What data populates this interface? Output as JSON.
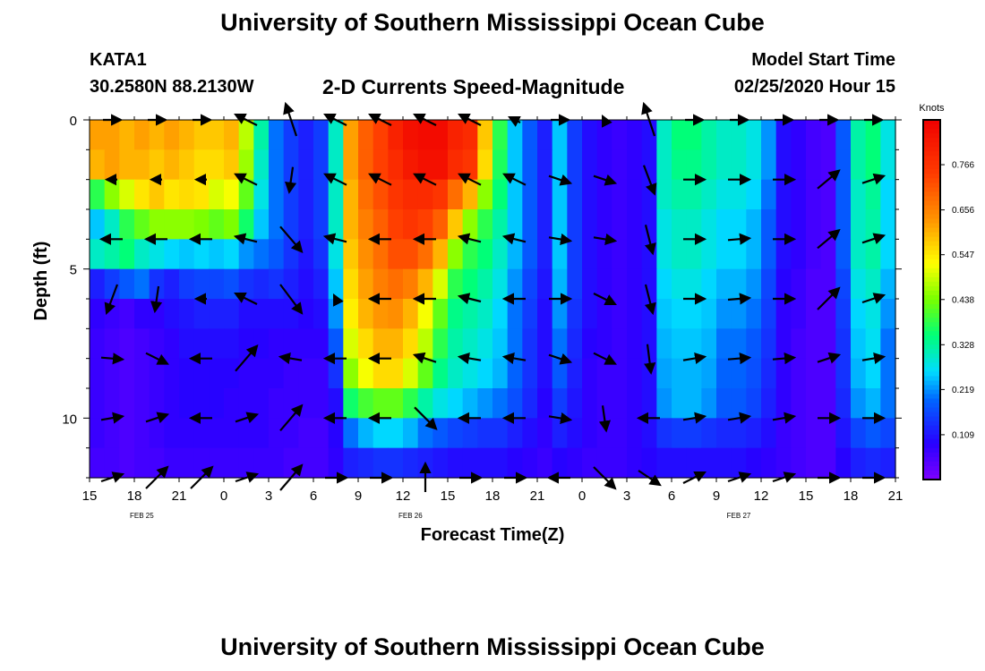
{
  "header": {
    "title": "University of Southern Mississippi Ocean Cube",
    "station": "KATA1",
    "coordinates": "30.2580N 88.2130W",
    "subtitle": "2-D Currents Speed-Magnitude",
    "model_start_label": "Model Start Time",
    "model_start_value": "02/25/2020 Hour 15"
  },
  "footer": {
    "title": "University of Southern Mississippi Ocean Cube"
  },
  "chart_data": {
    "type": "heatmap",
    "title": "2-D Currents Speed-Magnitude",
    "xlabel": "Forecast Time(Z)",
    "ylabel": "Depth (ft)",
    "x_ticks": [
      "15",
      "18",
      "21",
      "0",
      "3",
      "6",
      "9",
      "12",
      "15",
      "18",
      "21",
      "0",
      "3",
      "6",
      "9",
      "12",
      "15",
      "18",
      "21"
    ],
    "date_labels": [
      {
        "label": "FEB 25",
        "hour_offset": 3.5
      },
      {
        "label": "FEB 26",
        "hour_offset": 21.5
      },
      {
        "label": "FEB 27",
        "hour_offset": 43.5
      }
    ],
    "xlim_hours": [
      0,
      54
    ],
    "y_ticks": [
      0,
      5,
      10
    ],
    "ylim_ft": [
      0,
      12
    ],
    "colorbar": {
      "unit": "Knots",
      "ticks": [
        0.766,
        0.656,
        0.547,
        0.438,
        0.328,
        0.219,
        0.109
      ],
      "range": [
        0,
        0.875
      ]
    },
    "hours": [
      0,
      1,
      2,
      3,
      4,
      5,
      6,
      7,
      8,
      9,
      10,
      11,
      12,
      13,
      14,
      15,
      16,
      17,
      18,
      19,
      20,
      21,
      22,
      23,
      24,
      25,
      26,
      27,
      28,
      29,
      30,
      31,
      32,
      33,
      34,
      35,
      36,
      37,
      38,
      39,
      40,
      41,
      42,
      43,
      44,
      45,
      46,
      47,
      48,
      49,
      50,
      51,
      52,
      53
    ],
    "depths_ft": [
      0.5,
      1.5,
      2.5,
      3.5,
      4.5,
      5.5,
      6.5,
      7.5,
      8.5,
      9.5,
      10.5,
      11.5
    ],
    "speed_knots": [
      [
        0.62,
        0.62,
        0.6,
        0.62,
        0.6,
        0.62,
        0.6,
        0.58,
        0.58,
        0.6,
        0.48,
        0.32,
        0.2,
        0.15,
        0.12,
        0.15,
        0.3,
        0.62,
        0.7,
        0.74,
        0.8,
        0.84,
        0.85,
        0.85,
        0.8,
        0.78,
        0.58,
        0.38,
        0.25,
        0.18,
        0.12,
        0.25,
        0.15,
        0.1,
        0.08,
        0.07,
        0.08,
        0.1,
        0.3,
        0.35,
        0.35,
        0.32,
        0.3,
        0.3,
        0.28,
        0.22,
        0.1,
        0.08,
        0.06,
        0.05,
        0.18,
        0.32,
        0.35,
        0.28
      ],
      [
        0.6,
        0.62,
        0.6,
        0.6,
        0.58,
        0.6,
        0.58,
        0.56,
        0.56,
        0.58,
        0.46,
        0.3,
        0.2,
        0.15,
        0.12,
        0.15,
        0.3,
        0.62,
        0.7,
        0.74,
        0.78,
        0.82,
        0.84,
        0.84,
        0.78,
        0.76,
        0.56,
        0.37,
        0.25,
        0.18,
        0.12,
        0.25,
        0.15,
        0.1,
        0.08,
        0.07,
        0.08,
        0.1,
        0.3,
        0.34,
        0.34,
        0.32,
        0.3,
        0.3,
        0.28,
        0.22,
        0.1,
        0.08,
        0.06,
        0.05,
        0.18,
        0.32,
        0.35,
        0.28
      ],
      [
        0.38,
        0.45,
        0.5,
        0.55,
        0.58,
        0.55,
        0.56,
        0.55,
        0.5,
        0.52,
        0.42,
        0.28,
        0.2,
        0.15,
        0.12,
        0.15,
        0.3,
        0.6,
        0.68,
        0.72,
        0.76,
        0.78,
        0.78,
        0.76,
        0.68,
        0.6,
        0.45,
        0.35,
        0.25,
        0.18,
        0.12,
        0.25,
        0.15,
        0.1,
        0.08,
        0.07,
        0.08,
        0.1,
        0.3,
        0.32,
        0.32,
        0.3,
        0.28,
        0.28,
        0.26,
        0.2,
        0.1,
        0.08,
        0.06,
        0.05,
        0.18,
        0.3,
        0.33,
        0.26
      ],
      [
        0.25,
        0.3,
        0.38,
        0.42,
        0.45,
        0.45,
        0.45,
        0.44,
        0.42,
        0.44,
        0.36,
        0.25,
        0.2,
        0.15,
        0.12,
        0.15,
        0.3,
        0.6,
        0.66,
        0.7,
        0.74,
        0.76,
        0.74,
        0.7,
        0.58,
        0.45,
        0.38,
        0.32,
        0.25,
        0.18,
        0.12,
        0.25,
        0.15,
        0.1,
        0.08,
        0.07,
        0.08,
        0.1,
        0.28,
        0.3,
        0.3,
        0.28,
        0.26,
        0.26,
        0.24,
        0.18,
        0.1,
        0.08,
        0.06,
        0.05,
        0.18,
        0.3,
        0.32,
        0.26
      ],
      [
        0.3,
        0.32,
        0.35,
        0.3,
        0.28,
        0.26,
        0.25,
        0.26,
        0.25,
        0.26,
        0.22,
        0.2,
        0.18,
        0.14,
        0.11,
        0.14,
        0.28,
        0.58,
        0.64,
        0.68,
        0.72,
        0.72,
        0.68,
        0.6,
        0.45,
        0.38,
        0.35,
        0.3,
        0.24,
        0.18,
        0.12,
        0.25,
        0.15,
        0.1,
        0.08,
        0.07,
        0.08,
        0.1,
        0.28,
        0.3,
        0.3,
        0.28,
        0.26,
        0.26,
        0.24,
        0.18,
        0.1,
        0.08,
        0.06,
        0.05,
        0.18,
        0.3,
        0.32,
        0.26
      ],
      [
        0.12,
        0.15,
        0.18,
        0.2,
        0.14,
        0.12,
        0.15,
        0.16,
        0.16,
        0.17,
        0.14,
        0.13,
        0.14,
        0.12,
        0.1,
        0.12,
        0.25,
        0.56,
        0.62,
        0.66,
        0.68,
        0.66,
        0.6,
        0.5,
        0.38,
        0.35,
        0.32,
        0.28,
        0.22,
        0.16,
        0.11,
        0.24,
        0.15,
        0.1,
        0.08,
        0.07,
        0.08,
        0.1,
        0.26,
        0.28,
        0.28,
        0.26,
        0.24,
        0.24,
        0.22,
        0.16,
        0.09,
        0.07,
        0.05,
        0.05,
        0.16,
        0.28,
        0.3,
        0.24
      ],
      [
        0.08,
        0.07,
        0.06,
        0.08,
        0.08,
        0.1,
        0.11,
        0.12,
        0.12,
        0.12,
        0.1,
        0.1,
        0.1,
        0.1,
        0.09,
        0.1,
        0.22,
        0.54,
        0.6,
        0.63,
        0.64,
        0.6,
        0.52,
        0.42,
        0.34,
        0.32,
        0.3,
        0.26,
        0.2,
        0.15,
        0.1,
        0.22,
        0.14,
        0.1,
        0.08,
        0.07,
        0.08,
        0.1,
        0.25,
        0.26,
        0.26,
        0.25,
        0.22,
        0.22,
        0.2,
        0.15,
        0.08,
        0.07,
        0.05,
        0.05,
        0.15,
        0.26,
        0.28,
        0.22
      ],
      [
        0.07,
        0.06,
        0.05,
        0.06,
        0.07,
        0.08,
        0.1,
        0.1,
        0.1,
        0.1,
        0.09,
        0.09,
        0.08,
        0.08,
        0.08,
        0.08,
        0.18,
        0.5,
        0.56,
        0.6,
        0.6,
        0.56,
        0.48,
        0.38,
        0.32,
        0.3,
        0.28,
        0.25,
        0.2,
        0.14,
        0.1,
        0.2,
        0.13,
        0.09,
        0.08,
        0.07,
        0.08,
        0.1,
        0.24,
        0.25,
        0.25,
        0.24,
        0.2,
        0.2,
        0.18,
        0.14,
        0.08,
        0.06,
        0.05,
        0.05,
        0.14,
        0.25,
        0.27,
        0.2
      ],
      [
        0.07,
        0.06,
        0.05,
        0.06,
        0.07,
        0.08,
        0.09,
        0.09,
        0.09,
        0.09,
        0.08,
        0.08,
        0.08,
        0.07,
        0.07,
        0.07,
        0.14,
        0.45,
        0.52,
        0.56,
        0.56,
        0.5,
        0.42,
        0.34,
        0.3,
        0.28,
        0.26,
        0.24,
        0.19,
        0.14,
        0.1,
        0.18,
        0.12,
        0.08,
        0.07,
        0.07,
        0.08,
        0.1,
        0.23,
        0.24,
        0.24,
        0.23,
        0.19,
        0.19,
        0.17,
        0.13,
        0.08,
        0.06,
        0.05,
        0.05,
        0.14,
        0.24,
        0.26,
        0.2
      ],
      [
        0.07,
        0.06,
        0.05,
        0.06,
        0.07,
        0.08,
        0.09,
        0.09,
        0.09,
        0.08,
        0.08,
        0.08,
        0.07,
        0.07,
        0.07,
        0.07,
        0.1,
        0.36,
        0.4,
        0.42,
        0.42,
        0.38,
        0.32,
        0.28,
        0.26,
        0.24,
        0.22,
        0.2,
        0.17,
        0.13,
        0.09,
        0.15,
        0.11,
        0.08,
        0.07,
        0.07,
        0.08,
        0.1,
        0.22,
        0.24,
        0.24,
        0.22,
        0.18,
        0.18,
        0.16,
        0.12,
        0.08,
        0.06,
        0.05,
        0.05,
        0.13,
        0.22,
        0.24,
        0.2
      ],
      [
        0.07,
        0.06,
        0.05,
        0.06,
        0.07,
        0.08,
        0.08,
        0.08,
        0.08,
        0.08,
        0.08,
        0.08,
        0.07,
        0.07,
        0.06,
        0.06,
        0.09,
        0.2,
        0.24,
        0.26,
        0.26,
        0.24,
        0.2,
        0.18,
        0.16,
        0.15,
        0.14,
        0.14,
        0.12,
        0.1,
        0.08,
        0.12,
        0.1,
        0.08,
        0.07,
        0.07,
        0.08,
        0.1,
        0.14,
        0.15,
        0.15,
        0.14,
        0.13,
        0.13,
        0.12,
        0.1,
        0.07,
        0.06,
        0.05,
        0.05,
        0.11,
        0.16,
        0.18,
        0.16
      ],
      [
        0.06,
        0.06,
        0.05,
        0.06,
        0.06,
        0.07,
        0.07,
        0.07,
        0.07,
        0.07,
        0.07,
        0.07,
        0.07,
        0.06,
        0.06,
        0.06,
        0.08,
        0.12,
        0.13,
        0.14,
        0.14,
        0.13,
        0.12,
        0.11,
        0.1,
        0.1,
        0.1,
        0.1,
        0.09,
        0.08,
        0.07,
        0.09,
        0.08,
        0.07,
        0.07,
        0.07,
        0.08,
        0.09,
        0.1,
        0.1,
        0.1,
        0.1,
        0.1,
        0.1,
        0.09,
        0.08,
        0.07,
        0.06,
        0.05,
        0.05,
        0.09,
        0.12,
        0.13,
        0.12
      ]
    ],
    "vector_hours": [
      1.5,
      4.5,
      7.5,
      10.5,
      13.5,
      16.5,
      19.5,
      22.5,
      25.5,
      28.5,
      31.5,
      34.5,
      37.5,
      40.5,
      43.5,
      46.5,
      49.5,
      52.5
    ],
    "vector_depths_ft": [
      0,
      2,
      4,
      6,
      8,
      10,
      12
    ],
    "vectors": [
      [
        [
          10,
          0
        ],
        [
          10,
          0
        ],
        [
          10,
          0
        ],
        [
          -12,
          -6
        ],
        [
          -6,
          -18
        ],
        [
          -12,
          -6
        ],
        [
          -12,
          -6
        ],
        [
          -12,
          -6
        ],
        [
          -12,
          -6
        ],
        [
          -6,
          -3
        ],
        [
          10,
          0
        ],
        [
          -2,
          -4
        ],
        [
          -6,
          -18
        ],
        [
          10,
          0
        ],
        [
          10,
          0
        ],
        [
          10,
          0
        ],
        [
          10,
          0
        ],
        [
          10,
          0
        ]
      ],
      [
        [
          -6,
          0
        ],
        [
          -6,
          0
        ],
        [
          -6,
          0
        ],
        [
          -12,
          -6
        ],
        [
          -2,
          14
        ],
        [
          -12,
          -6
        ],
        [
          -12,
          -6
        ],
        [
          -12,
          -6
        ],
        [
          -12,
          -6
        ],
        [
          -12,
          -6
        ],
        [
          12,
          4
        ],
        [
          12,
          4
        ],
        [
          6,
          16
        ],
        [
          12,
          0
        ],
        [
          12,
          0
        ],
        [
          12,
          0
        ],
        [
          12,
          -10
        ],
        [
          12,
          -4
        ]
      ],
      [
        [
          -12,
          0
        ],
        [
          -12,
          0
        ],
        [
          -12,
          0
        ],
        [
          -12,
          -3
        ],
        [
          12,
          14
        ],
        [
          -12,
          -3
        ],
        [
          -12,
          0
        ],
        [
          -12,
          0
        ],
        [
          -12,
          -3
        ],
        [
          -12,
          -3
        ],
        [
          12,
          2
        ],
        [
          12,
          2
        ],
        [
          4,
          16
        ],
        [
          12,
          0
        ],
        [
          12,
          -1
        ],
        [
          12,
          0
        ],
        [
          12,
          -10
        ],
        [
          12,
          -4
        ]
      ],
      [
        [
          -6,
          16
        ],
        [
          -2,
          14
        ],
        [
          -6,
          0
        ],
        [
          -12,
          -6
        ],
        [
          12,
          16
        ],
        [
          -2,
          -4
        ],
        [
          -12,
          0
        ],
        [
          -12,
          0
        ],
        [
          -12,
          -3
        ],
        [
          -12,
          0
        ],
        [
          12,
          0
        ],
        [
          12,
          6
        ],
        [
          4,
          16
        ],
        [
          12,
          0
        ],
        [
          12,
          -1
        ],
        [
          12,
          0
        ],
        [
          12,
          -12
        ],
        [
          12,
          -4
        ]
      ],
      [
        [
          12,
          1
        ],
        [
          12,
          6
        ],
        [
          -12,
          0
        ],
        [
          12,
          -14
        ],
        [
          -12,
          -2
        ],
        [
          -12,
          0
        ],
        [
          -12,
          0
        ],
        [
          -12,
          -4
        ],
        [
          -12,
          -2
        ],
        [
          -12,
          -2
        ],
        [
          12,
          4
        ],
        [
          12,
          6
        ],
        [
          2,
          16
        ],
        [
          12,
          -2
        ],
        [
          12,
          -1
        ],
        [
          12,
          -1
        ],
        [
          12,
          -4
        ],
        [
          12,
          -2
        ]
      ],
      [
        [
          12,
          -2
        ],
        [
          12,
          -4
        ],
        [
          -12,
          0
        ],
        [
          12,
          -4
        ],
        [
          12,
          -14
        ],
        [
          -12,
          0
        ],
        [
          -12,
          0
        ],
        [
          12,
          12
        ],
        [
          -12,
          0
        ],
        [
          -12,
          0
        ],
        [
          12,
          2
        ],
        [
          2,
          14
        ],
        [
          -12,
          0
        ],
        [
          12,
          -2
        ],
        [
          12,
          -2
        ],
        [
          12,
          -2
        ],
        [
          12,
          0
        ],
        [
          12,
          0
        ]
      ],
      [
        [
          12,
          -4
        ],
        [
          12,
          -12
        ],
        [
          12,
          -12
        ],
        [
          12,
          -4
        ],
        [
          12,
          -14
        ],
        [
          12,
          0
        ],
        [
          12,
          0
        ],
        [
          0,
          -16
        ],
        [
          12,
          0
        ],
        [
          12,
          0
        ],
        [
          -12,
          0
        ],
        [
          12,
          12
        ],
        [
          12,
          8
        ],
        [
          12,
          -6
        ],
        [
          12,
          -4
        ],
        [
          12,
          -4
        ],
        [
          12,
          0
        ],
        [
          12,
          0
        ]
      ]
    ]
  }
}
